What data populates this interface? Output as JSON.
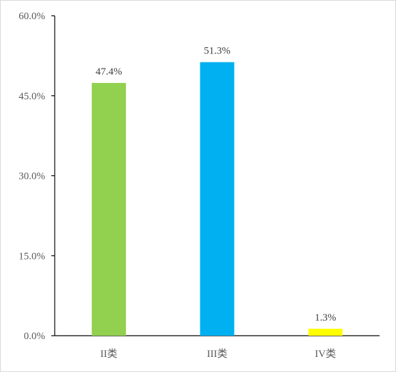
{
  "chart_data": {
    "type": "bar",
    "title": "",
    "xlabel": "",
    "ylabel": "",
    "categories": [
      "II类",
      "III类",
      "IV类"
    ],
    "values": [
      47.4,
      51.3,
      1.3
    ],
    "data_labels": [
      "47.4%",
      "51.3%",
      "1.3%"
    ],
    "bar_colors": [
      "#92d050",
      "#00b0f0",
      "#ffff00"
    ],
    "ylim": [
      0,
      60
    ],
    "yticks": [
      0,
      15,
      30,
      45,
      60
    ],
    "ytick_labels": [
      "0.0%",
      "15.0%",
      "30.0%",
      "45.0%",
      "60.0%"
    ],
    "grid": false,
    "legend": "none"
  }
}
